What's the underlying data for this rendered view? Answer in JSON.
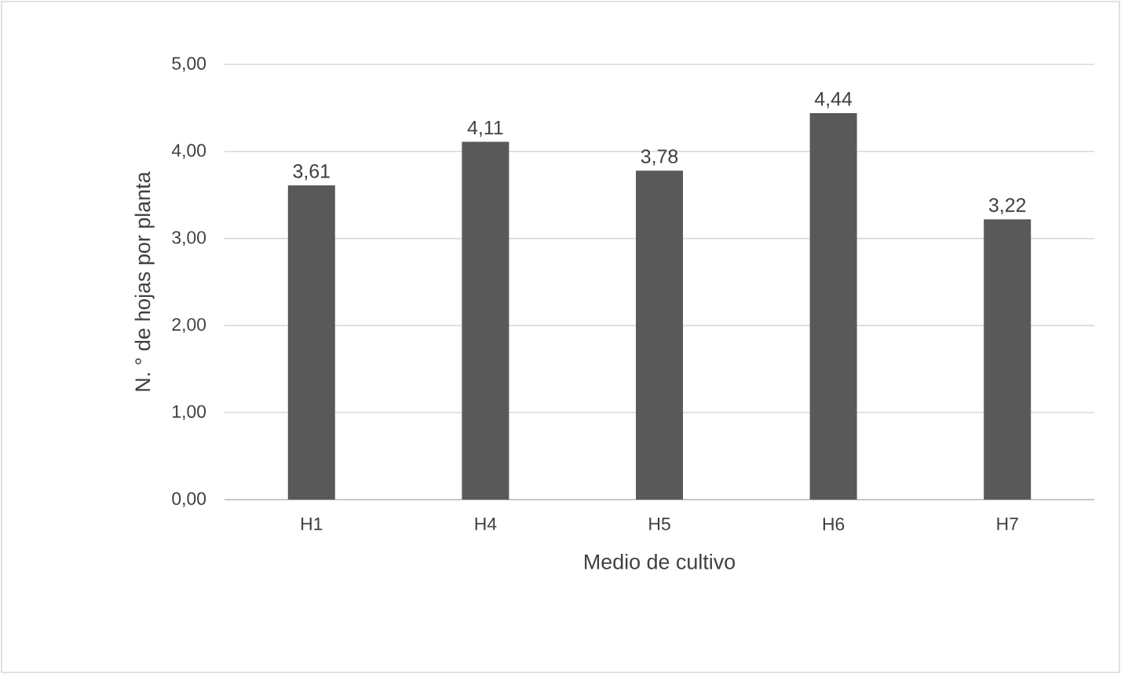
{
  "chart_data": {
    "type": "bar",
    "xlabel": "Medio de cultivo",
    "ylabel": "N. ° de hojas por planta",
    "categories": [
      "H1",
      "H4",
      "H5",
      "H6",
      "H7"
    ],
    "values": [
      3.61,
      4.11,
      3.78,
      4.44,
      3.22
    ],
    "value_labels": [
      "3,61",
      "4,11",
      "3,78",
      "4,44",
      "3,22"
    ],
    "color": "#595959",
    "ylim": [
      0,
      5
    ],
    "yticks": [
      {
        "value": 0,
        "label": "0,00"
      },
      {
        "value": 1,
        "label": "1,00"
      },
      {
        "value": 2,
        "label": "2,00"
      },
      {
        "value": 3,
        "label": "3,00"
      },
      {
        "value": 4,
        "label": "4,00"
      },
      {
        "value": 5,
        "label": "5,00"
      }
    ],
    "grid": "y"
  }
}
